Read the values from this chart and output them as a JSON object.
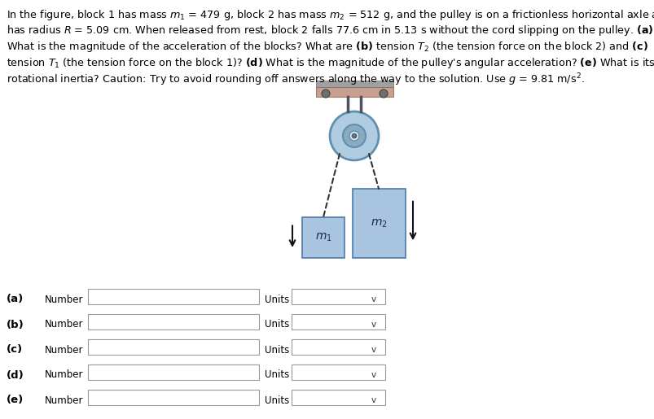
{
  "bg_color": "#ffffff",
  "text_color": "#000000",
  "block_color": "#a8c4df",
  "block_border": "#4a7aaa",
  "pulley_outer_color": "#b0cce0",
  "pulley_mid_color": "#8aaabf",
  "pulley_inner_color": "#d8e8f0",
  "pulley_dot_color": "#607080",
  "ceiling_color": "#c8a090",
  "ceiling_hatch_color": "#808080",
  "bracket_color": "#505060",
  "cord_color": "#333333",
  "arrow_color": "#111111",
  "form_label_color": "#000000",
  "problem_lines": [
    "In the figure, block 1 has mass $m_1$ = 479 g, block 2 has mass $m_2$ = 512 g, and the pulley is on a frictionless horizontal axle and",
    "has radius $R$ = 5.09 cm. When released from rest, block 2 falls 77.6 cm in 5.13 s without the cord slipping on the pulley. **(a)**",
    "What is the magnitude of the acceleration of the blocks? What are **(b)** tension $T_2$ (the tension force on the block 2) and **(c)**",
    "tension $T_1$ (the tension force on the block 1)? **(d)** What is the magnitude of the pulley's angular acceleration? **(e)** What is its",
    "rotational inertia? Caution: Try to avoid rounding off answers along the way to the solution. Use $g$ = 9.81 m/s$^2$."
  ],
  "row_labels": [
    "(a)",
    "(b)",
    "(c)",
    "(d)",
    "(e)"
  ],
  "font_size_text": 9.2,
  "font_size_form": 9.5,
  "font_size_bold_label": 9.5
}
